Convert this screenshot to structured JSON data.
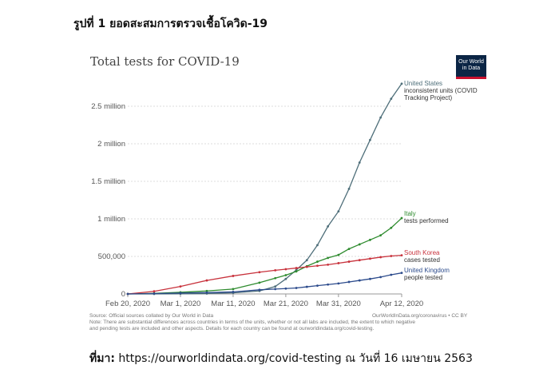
{
  "document": {
    "caption": "รูปที่ 1 ยอดสะสมการตรวจเชื้อโควิด-19",
    "reference_label": "ที่มา:",
    "reference_text": "https://ourworldindata.org/covid-testing ณ วันที่ 16 เมษายน 2563"
  },
  "logo": {
    "line1": "Our World",
    "line2": "in Data"
  },
  "footer": {
    "source": "Source: Official sources collated by Our World in Data",
    "credit": "OurWorldInData.org/coronavirus • CC BY",
    "note1": "Note: There are substantial differences across countries in terms of the units, whether or not all labs are included, the extent to which negative",
    "note2": "and pending tests are included and other aspects. Details for each country can be found at ourworldindata.org/covid-testing."
  },
  "chart_data": {
    "type": "line",
    "title": "Total tests for COVID-19",
    "xlabel": "",
    "ylabel": "",
    "x_days_since": "2020-02-20",
    "x": [
      0,
      5,
      10,
      15,
      20,
      25,
      28,
      30,
      32,
      34,
      36,
      38,
      40,
      42,
      44,
      46,
      48,
      50,
      52
    ],
    "xlim": [
      0,
      52
    ],
    "ylim": [
      0,
      2800000
    ],
    "grid": true,
    "x_ticks": [
      {
        "day": 0,
        "label": "Feb 20, 2020"
      },
      {
        "day": 10,
        "label": "Mar 1, 2020"
      },
      {
        "day": 20,
        "label": "Mar 11, 2020"
      },
      {
        "day": 30,
        "label": "Mar 21, 2020"
      },
      {
        "day": 40,
        "label": "Mar 31, 2020"
      },
      {
        "day": 52,
        "label": "Apr 12, 2020"
      }
    ],
    "y_ticks": [
      {
        "value": 0,
        "label": "0"
      },
      {
        "value": 500000,
        "label": "500,000"
      },
      {
        "value": 1000000,
        "label": "1 million"
      },
      {
        "value": 1500000,
        "label": "1.5 million"
      },
      {
        "value": 2000000,
        "label": "2 million"
      },
      {
        "value": 2500000,
        "label": "2.5 million"
      }
    ],
    "series": [
      {
        "name": "United States",
        "sublabel": "inconsistent units (COVID Tracking Project)",
        "sub1": "inconsistent units (COVID",
        "sub2": "Tracking Project)",
        "color": "#4f6f7a",
        "values": [
          0,
          500,
          2000,
          5000,
          15000,
          40000,
          100000,
          200000,
          320000,
          450000,
          650000,
          900000,
          1100000,
          1400000,
          1750000,
          2050000,
          2350000,
          2600000,
          2800000
        ]
      },
      {
        "name": "Italy",
        "sublabel": "tests performed",
        "color": "#2e8b2e",
        "values": [
          0,
          8000,
          22000,
          40000,
          65000,
          150000,
          210000,
          250000,
          300000,
          370000,
          430000,
          480000,
          520000,
          600000,
          660000,
          720000,
          780000,
          880000,
          1010000
        ]
      },
      {
        "name": "South Korea",
        "sublabel": "cases tested",
        "color": "#c8323c",
        "values": [
          0,
          35000,
          100000,
          180000,
          240000,
          290000,
          315000,
          330000,
          345000,
          360000,
          375000,
          390000,
          410000,
          430000,
          450000,
          470000,
          490000,
          505000,
          515000
        ]
      },
      {
        "name": "United Kingdom",
        "sublabel": "people tested",
        "color": "#2c4b8c",
        "values": [
          0,
          5000,
          12000,
          18000,
          27000,
          55000,
          65000,
          72000,
          80000,
          95000,
          110000,
          125000,
          140000,
          160000,
          180000,
          200000,
          225000,
          255000,
          280000
        ]
      }
    ]
  }
}
